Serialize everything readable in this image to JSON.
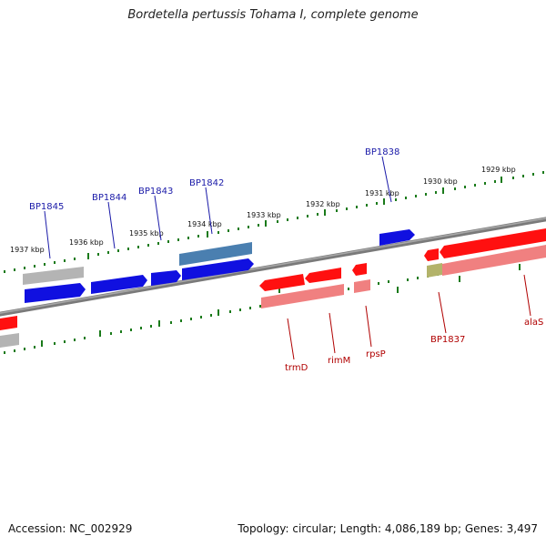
{
  "title": "Bordetella pertussis Tohama I, complete genome",
  "footer": {
    "accession": "Accession: NC_002929",
    "stats": "Topology: circular; Length: 4,086,189 bp; Genes: 3,497"
  },
  "scale_labels": [
    "1929 kbp",
    "1930 kbp",
    "1931 kbp",
    "1932 kbp",
    "1933 kbp",
    "1934 kbp",
    "1935 kbp",
    "1936 kbp",
    "1937 kbp"
  ],
  "forward_gene_labels": [
    "BP1838",
    "BP1842",
    "BP1843",
    "BP1844",
    "BP1845"
  ],
  "reverse_gene_labels": [
    "alaS",
    "BP1837",
    "rpsP",
    "rimM",
    "trmD"
  ],
  "colors": {
    "forward_gene": "#1010e0",
    "reverse_gene": "#ff1010",
    "pseudogene": "#b0b0b0",
    "rna_feature": "#4a7fb0",
    "backbone": "#7a7a7a",
    "ticks": "#1a7a1a",
    "forward_label": "#1a1aa8",
    "reverse_label": "#b00000"
  }
}
